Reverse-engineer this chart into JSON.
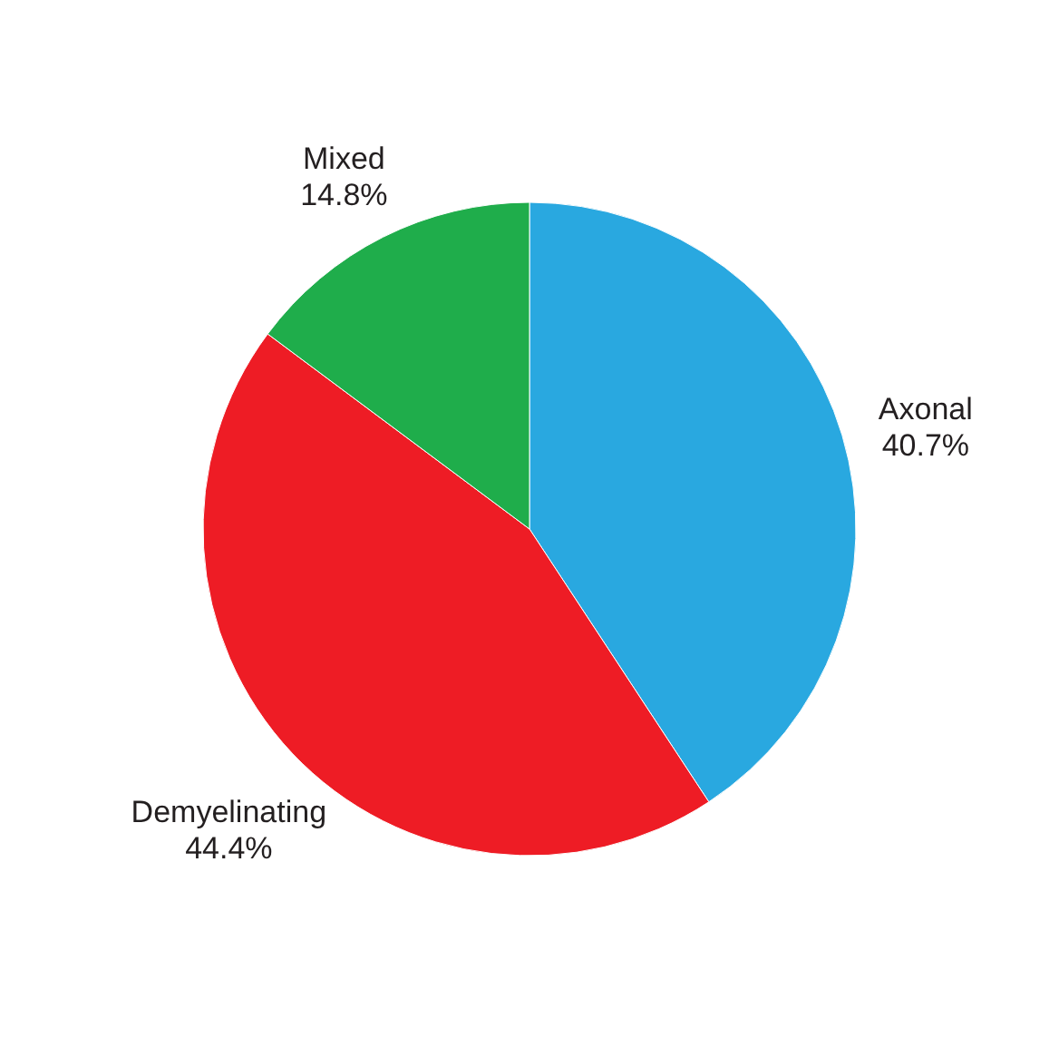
{
  "chart_data": {
    "type": "pie",
    "categories": [
      "Axonal",
      "Demyelinating",
      "Mixed"
    ],
    "values": [
      40.7,
      44.4,
      14.8
    ],
    "colors": [
      "#29a8e0",
      "#ee1c25",
      "#1fad4b"
    ],
    "value_labels": [
      "40.7%",
      "44.4%",
      "14.8%"
    ]
  }
}
